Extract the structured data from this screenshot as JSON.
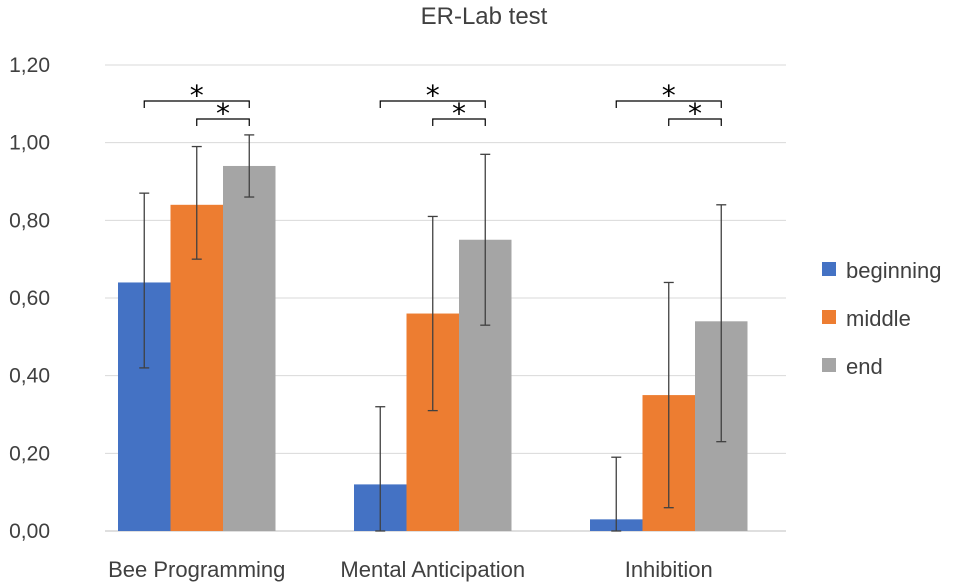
{
  "chart_data": {
    "type": "bar",
    "title": "ER-Lab test",
    "categories": [
      "Bee Programming",
      "Mental Anticipation",
      "Inhibition"
    ],
    "y_tick_labels": [
      "0,00",
      "0,20",
      "0,40",
      "0,60",
      "0,80",
      "1,00",
      "1,20"
    ],
    "ylim": [
      0,
      1.2
    ],
    "grid": true,
    "legend_position": "right",
    "series": [
      {
        "name": "beginning",
        "color": "#4472C4",
        "values": [
          0.64,
          0.12,
          0.03
        ],
        "err_high": [
          0.87,
          0.32,
          0.19
        ],
        "err_low": [
          0.42,
          0.0,
          0.0
        ]
      },
      {
        "name": "middle",
        "color": "#ED7D31",
        "values": [
          0.84,
          0.56,
          0.35
        ],
        "err_high": [
          0.99,
          0.81,
          0.64
        ],
        "err_low": [
          0.7,
          0.31,
          0.06
        ]
      },
      {
        "name": "end",
        "color": "#A5A5A5",
        "values": [
          0.94,
          0.75,
          0.54
        ],
        "err_high": [
          1.02,
          0.97,
          0.84
        ],
        "err_low": [
          0.86,
          0.53,
          0.23
        ]
      }
    ],
    "significance": [
      {
        "category": 0,
        "from_series": 0,
        "to_series": 2,
        "label": "*"
      },
      {
        "category": 0,
        "from_series": 1,
        "to_series": 2,
        "label": "*"
      },
      {
        "category": 1,
        "from_series": 0,
        "to_series": 2,
        "label": "*"
      },
      {
        "category": 1,
        "from_series": 1,
        "to_series": 2,
        "label": "*"
      },
      {
        "category": 2,
        "from_series": 0,
        "to_series": 2,
        "label": "*"
      },
      {
        "category": 2,
        "from_series": 1,
        "to_series": 2,
        "label": "*"
      }
    ]
  }
}
